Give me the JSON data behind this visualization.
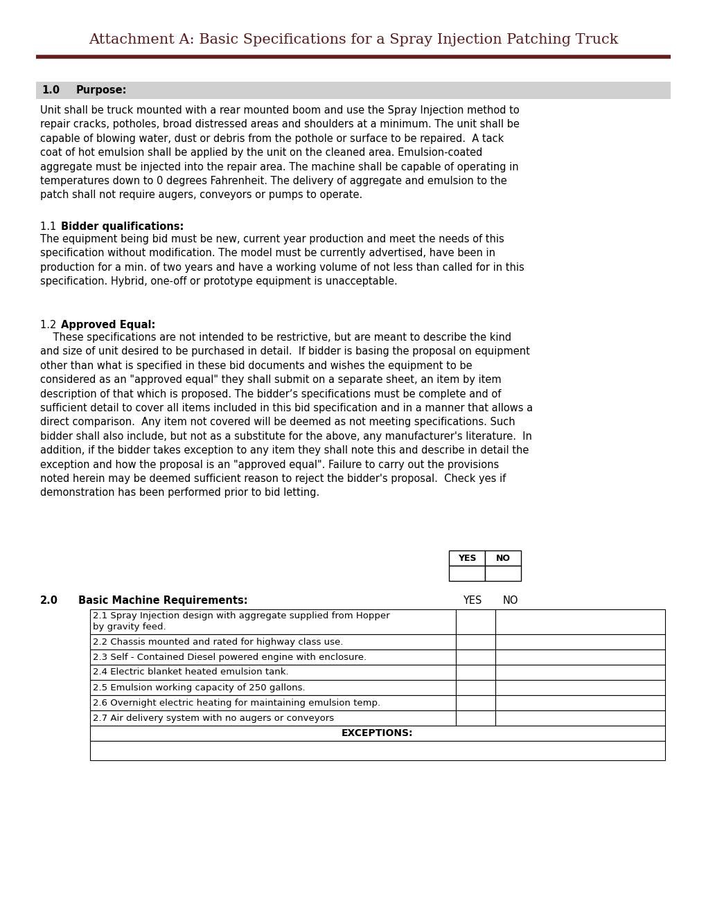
{
  "title": "Attachment A: Basic Specifications for a Spray Injection Patching Truck",
  "title_color": "#5c1a1a",
  "title_line_color": "#6b1a1a",
  "bg_color": "#ffffff",
  "section_header_bg": "#d0d0d0",
  "section_10_label": "1.0",
  "section_10_title": "Purpose:",
  "section_10_body": "Unit shall be truck mounted with a rear mounted boom and use the Spray Injection method to\nrepair cracks, potholes, broad distressed areas and shoulders at a minimum. The unit shall be\ncapable of blowing water, dust or debris from the pothole or surface to be repaired.  A tack\ncoat of hot emulsion shall be applied by the unit on the cleaned area. Emulsion-coated\naggregate must be injected into the repair area. The machine shall be capable of operating in\ntemperatures down to 0 degrees Fahrenheit. The delivery of aggregate and emulsion to the\npatch shall not require augers, conveyors or pumps to operate.",
  "section_11_label": "1.1",
  "section_11_title": "Bidder qualifications:",
  "section_11_body": "The equipment being bid must be new, current year production and meet the needs of this\nspecification without modification. The model must be currently advertised, have been in\nproduction for a min. of two years and have a working volume of not less than called for in this\nspecification. Hybrid, one-off or prototype equipment is unacceptable.",
  "section_12_label": "1.2",
  "section_12_title": "Approved Equal:",
  "section_12_body": "    These specifications are not intended to be restrictive, but are meant to describe the kind\nand size of unit desired to be purchased in detail.  If bidder is basing the proposal on equipment\nother than what is specified in these bid documents and wishes the equipment to be\nconsidered as an \"approved equal\" they shall submit on a separate sheet, an item by item\ndescription of that which is proposed. The bidder’s specifications must be complete and of\nsufficient detail to cover all items included in this bid specification and in a manner that allows a\ndirect comparison.  Any item not covered will be deemed as not meeting specifications. Such\nbidder shall also include, but not as a substitute for the above, any manufacturer's literature.  In\naddition, if the bidder takes exception to any item they shall note this and describe in detail the\nexception and how the proposal is an \"approved equal\". Failure to carry out the provisions\nnoted herein may be deemed sufficient reason to reject the bidder's proposal.  Check yes if\ndemonstration has been performed prior to bid letting.",
  "section_20_label": "2.0",
  "section_20_title": "Basic Machine Requirements:",
  "section_20_items": [
    "2.1 Spray Injection design with aggregate supplied from Hopper\nby gravity feed.",
    "2.2 Chassis mounted and rated for highway class use.",
    "2.3 Self - Contained Diesel powered engine with enclosure.",
    "2.4 Electric blanket heated emulsion tank.",
    "2.5 Emulsion working capacity of 250 gallons.",
    "2.6 Overnight electric heating for maintaining emulsion temp.",
    "2.7 Air delivery system with no augers or conveyors"
  ],
  "exceptions_label": "EXCEPTIONS:",
  "text_color": "#000000",
  "font_size_title": 15,
  "font_size_body": 10.5,
  "font_size_section_header": 10.5
}
